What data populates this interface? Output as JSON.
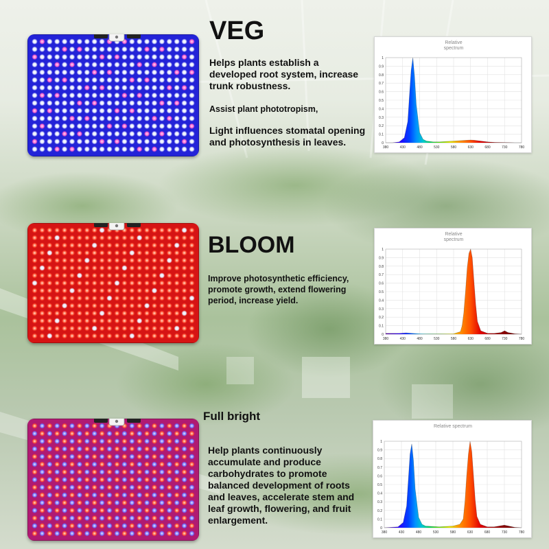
{
  "colors": {
    "veg_panel": "#2323d8",
    "bloom_panel": "#d61414",
    "full_panel": "#b01a72",
    "blue_peak": "#1f5fd6",
    "red_peak": "#e35b12"
  },
  "sections": [
    {
      "title": "VEG",
      "paragraphs": [
        "Helps plants establish a developed root system, increase trunk robustness.",
        "Assist plant phototropism,",
        "Light influences stomatal opening and photosynthesis in leaves."
      ],
      "chart_data": {
        "type": "line",
        "title": "Relative spectrum",
        "title_lines": [
          "Relative",
          "spectrum"
        ],
        "x_ticks": [
          "380",
          "430",
          "480",
          "530",
          "580",
          "630",
          "680",
          "730",
          "780"
        ],
        "y_ticks": [
          "0",
          "0.1",
          "0.2",
          "0.3",
          "0.4",
          "0.5",
          "0.6",
          "0.7",
          "0.8",
          "0.9",
          "1"
        ],
        "xlim": [
          380,
          780
        ],
        "ylim": [
          0,
          1
        ],
        "series": [
          {
            "x": [
              380,
              400,
              420,
              435,
              445,
              450,
              455,
              460,
              465,
              470,
              480,
              490,
              500,
              520,
              540,
              560,
              580,
              600,
              620,
              630,
              640,
              660,
              680,
              700,
              720,
              740,
              760,
              780
            ],
            "y": [
              0,
              0,
              0.01,
              0.06,
              0.25,
              0.55,
              0.85,
              1.0,
              0.78,
              0.45,
              0.12,
              0.04,
              0.02,
              0.01,
              0.01,
              0.015,
              0.02,
              0.025,
              0.03,
              0.032,
              0.03,
              0.02,
              0.01,
              0.005,
              0.003,
              0.002,
              0,
              0
            ]
          }
        ]
      }
    },
    {
      "title": "BLOOM",
      "paragraphs": [
        "Improve photosynthetic efficiency, promote growth, extend flowering period, increase yield."
      ],
      "chart_data": {
        "type": "line",
        "title": "Relative spectrum",
        "title_lines": [
          "Relative",
          "spectrum"
        ],
        "x_ticks": [
          "380",
          "430",
          "480",
          "530",
          "580",
          "630",
          "680",
          "730",
          "780"
        ],
        "y_ticks": [
          "0",
          "0.1",
          "0.2",
          "0.3",
          "0.4",
          "0.5",
          "0.6",
          "0.7",
          "0.8",
          "0.9",
          "1"
        ],
        "xlim": [
          380,
          780
        ],
        "ylim": [
          0,
          1
        ],
        "series": [
          {
            "x": [
              380,
              400,
              420,
              440,
              460,
              480,
              500,
              540,
              580,
              600,
              605,
              610,
              615,
              620,
              625,
              630,
              635,
              640,
              645,
              650,
              660,
              680,
              700,
              720,
              730,
              740,
              760,
              780
            ],
            "y": [
              0.01,
              0.01,
              0.01,
              0.015,
              0.01,
              0.005,
              0.003,
              0.003,
              0.005,
              0.03,
              0.1,
              0.25,
              0.5,
              0.78,
              0.95,
              1.0,
              0.9,
              0.62,
              0.35,
              0.15,
              0.04,
              0.01,
              0.01,
              0.02,
              0.04,
              0.02,
              0.005,
              0
            ]
          }
        ]
      }
    },
    {
      "title": "Full bright",
      "paragraphs": [
        "Help plants continuously accumulate and produce carbohydrates to promote balanced development of roots and leaves, accelerate stem and leaf growth, flowering, and fruit enlargement."
      ],
      "chart_data": {
        "type": "line",
        "title": "Relative spectrum",
        "title_lines": [
          "Relative spectrum"
        ],
        "x_ticks": [
          "380",
          "430",
          "480",
          "530",
          "580",
          "630",
          "680",
          "730",
          "780"
        ],
        "y_ticks": [
          "0",
          "0.1",
          "0.2",
          "0.3",
          "0.4",
          "0.5",
          "0.6",
          "0.7",
          "0.8",
          "0.9",
          "1"
        ],
        "xlim": [
          380,
          780
        ],
        "ylim": [
          0,
          1
        ],
        "series": [
          {
            "x": [
              380,
              420,
              435,
              445,
              450,
              455,
              460,
              465,
              470,
              480,
              490,
              500,
              540,
              580,
              600,
              610,
              615,
              620,
              625,
              630,
              635,
              640,
              645,
              650,
              660,
              680,
              700,
              730,
              760,
              780
            ],
            "y": [
              0,
              0.01,
              0.06,
              0.25,
              0.55,
              0.85,
              0.97,
              0.78,
              0.45,
              0.12,
              0.04,
              0.02,
              0.01,
              0.02,
              0.04,
              0.1,
              0.3,
              0.6,
              0.85,
              1.0,
              0.88,
              0.6,
              0.32,
              0.13,
              0.04,
              0.01,
              0.01,
              0.03,
              0.005,
              0
            ]
          }
        ]
      }
    }
  ]
}
